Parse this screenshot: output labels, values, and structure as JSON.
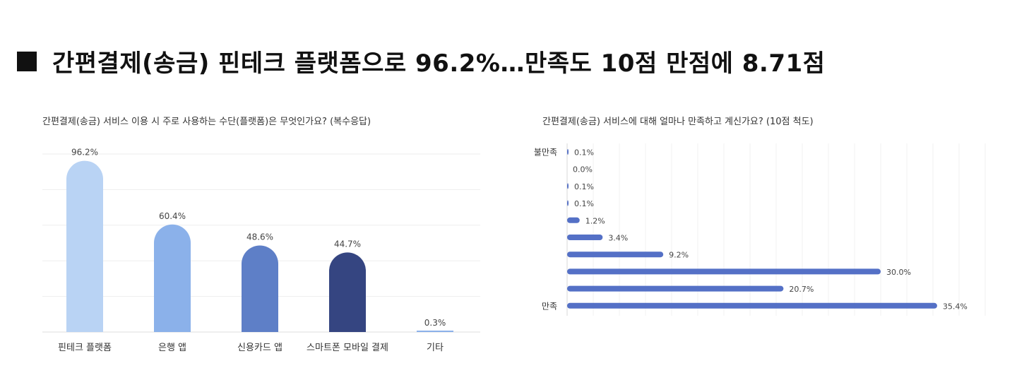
{
  "headline": {
    "text": "간편결제(송금) 핀테크 플랫폼으로 96.2%…만족도 10점 만점에 8.71점"
  },
  "chart_data": [
    {
      "type": "bar",
      "title": "간편결제(송금) 서비스 이용 시 주로 사용하는 수단(플랫폼)은 무엇인가요? (복수응답)",
      "xlabel": "",
      "ylabel": "",
      "categories": [
        "핀테크 플랫폼",
        "은행 앱",
        "신용카드 앱",
        "스마트폰 모바일 결제",
        "기타"
      ],
      "values": [
        96.2,
        60.4,
        48.6,
        44.7,
        0.3
      ],
      "value_labels": [
        "96.2%",
        "60.4%",
        "48.6%",
        "44.7%",
        "0.3%"
      ],
      "colors": [
        "#b9d3f4",
        "#8bb1ea",
        "#5e7fc7",
        "#354581",
        "#8bb1ea"
      ],
      "ylim": [
        0,
        100
      ],
      "grid": true,
      "legend": "none"
    },
    {
      "type": "bar",
      "orientation": "horizontal",
      "title": "간편결제(송금) 서비스에 대해 얼마나 만족하고 계신가요? (10점 척도)",
      "xlabel": "",
      "ylabel": "",
      "categories": [
        "불만족",
        "",
        "",
        "",
        "",
        "",
        "",
        "",
        "",
        "만족"
      ],
      "values": [
        0.1,
        0.0,
        0.1,
        0.1,
        1.2,
        3.4,
        9.2,
        30.0,
        20.7,
        35.4
      ],
      "value_labels": [
        "0.1%",
        "0.0%",
        "0.1%",
        "0.1%",
        "1.2%",
        "3.4%",
        "9.2%",
        "30.0%",
        "20.7%",
        "35.4%"
      ],
      "color": "#5470c6",
      "xlim": [
        0,
        40
      ],
      "grid": true,
      "legend": "none"
    }
  ]
}
